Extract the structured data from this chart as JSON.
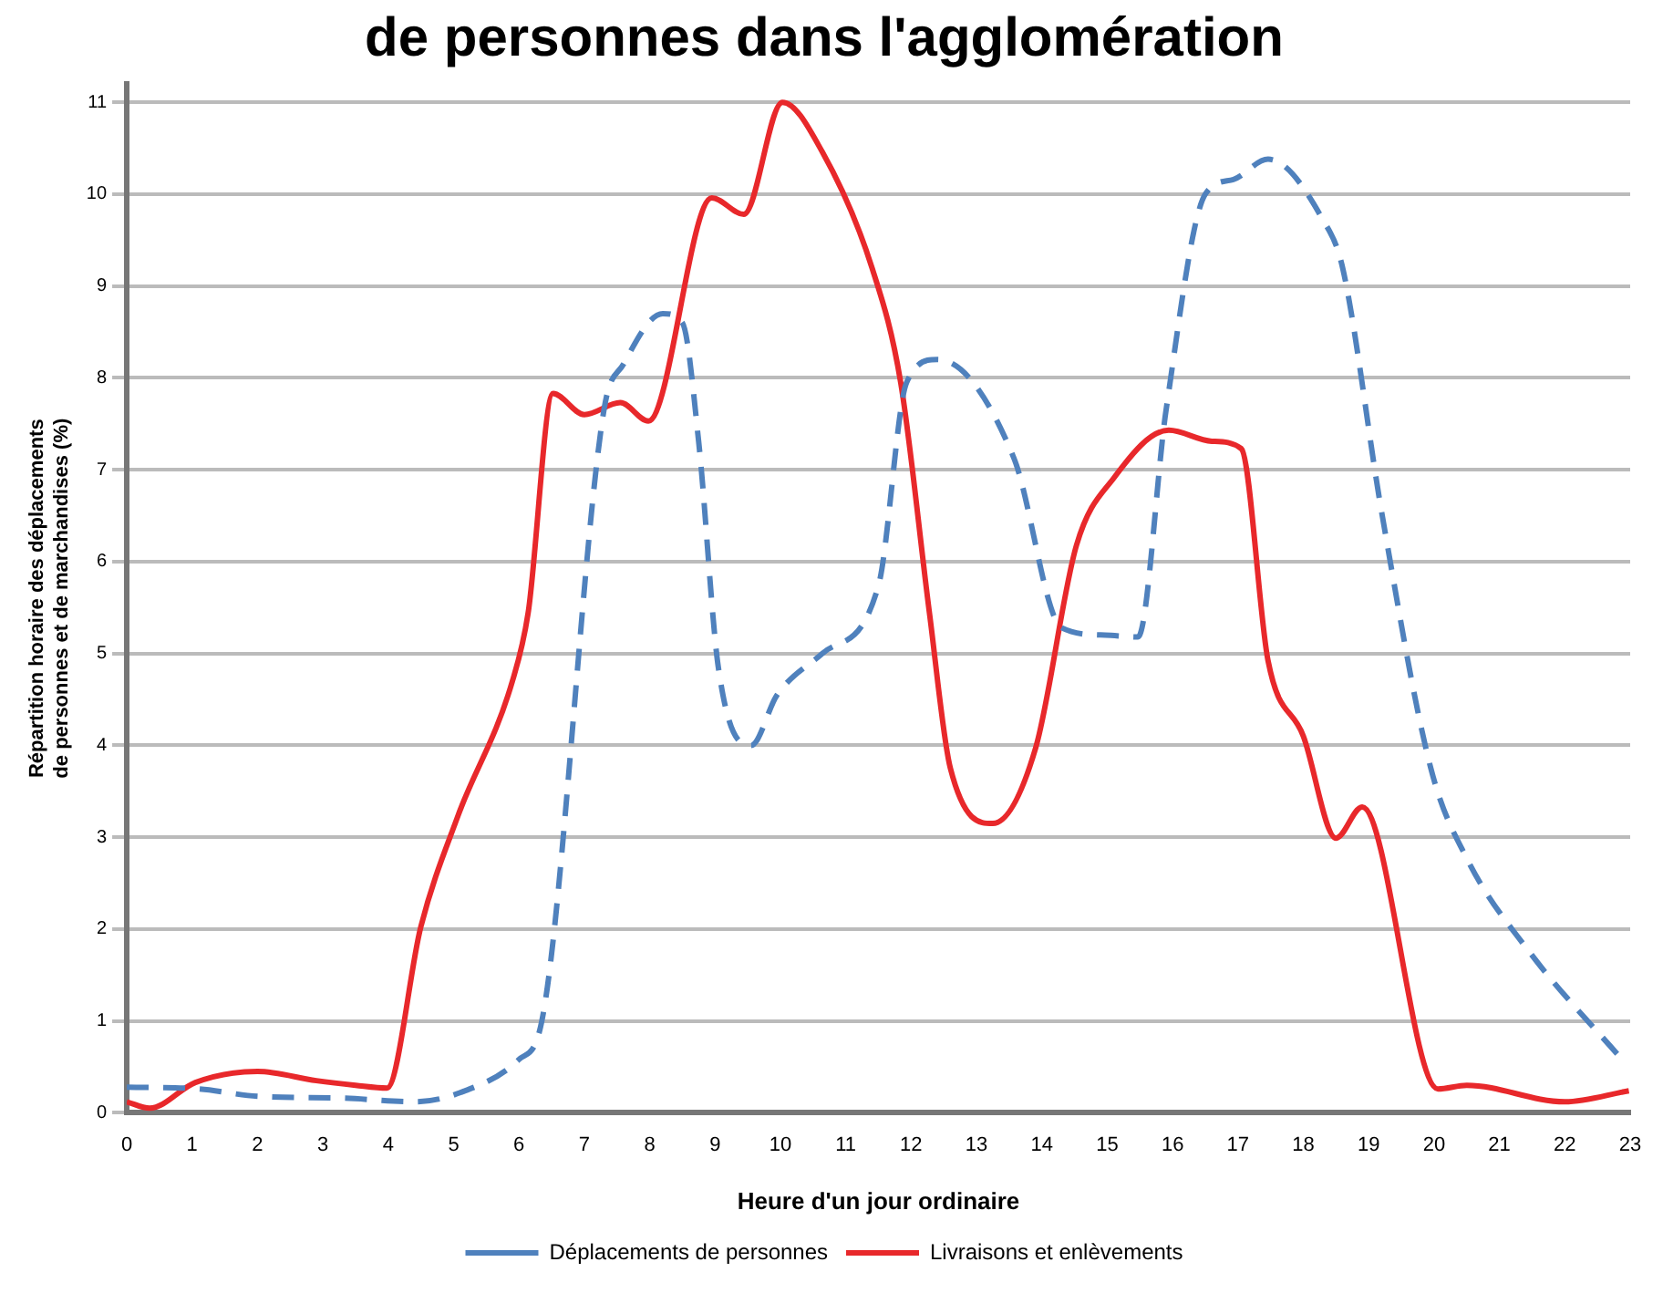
{
  "chart_data": {
    "type": "line",
    "title": "de personnes dans l'agglomération",
    "xlabel": "Heure d'un jour ordinaire",
    "ylabel": "Répartition horaire des déplacements\nde personnes et de marchandises (%)",
    "xlim": [
      0,
      23
    ],
    "xticks": [
      0,
      1,
      2,
      3,
      4,
      5,
      6,
      7,
      8,
      9,
      10,
      11,
      12,
      13,
      14,
      15,
      16,
      17,
      18,
      19,
      20,
      21,
      22,
      23
    ],
    "ylim": [
      0,
      11.2
    ],
    "yticks": [
      0,
      1,
      2,
      3,
      4,
      5,
      6,
      7,
      8,
      9,
      10,
      11
    ],
    "grid": "y",
    "legend": "bottom",
    "marker": "none",
    "series": [
      {
        "name": "Déplacements de personnes",
        "color": "#4f81bd",
        "line_style": "dashed",
        "x": [
          0,
          1.1,
          2,
          3.3,
          4.4,
          5.1,
          6,
          6.35,
          7.3,
          7.6,
          8.2,
          8.5,
          8.75,
          9.05,
          9.55,
          9.95,
          10.64,
          11.5,
          11.93,
          12.4,
          13.57,
          14.3,
          14.97,
          15.47,
          15.9,
          16.5,
          16.93,
          17.46,
          18.3,
          18.6,
          19.2,
          19.95,
          20.5,
          21.46,
          22.9
        ],
        "values": [
          0.28,
          0.26,
          0.18,
          0.16,
          0.12,
          0.22,
          0.58,
          1.0,
          7.65,
          8.15,
          8.7,
          8.6,
          7.3,
          4.85,
          4.0,
          4.55,
          5.0,
          5.74,
          7.95,
          8.2,
          7.13,
          5.28,
          5.2,
          5.18,
          7.65,
          10.0,
          10.16,
          10.38,
          9.72,
          9.2,
          6.53,
          3.75,
          2.77,
          1.75,
          0.56
        ]
      },
      {
        "name": "Livraisons et enlèvements",
        "color": "#e8282b",
        "line_style": "solid",
        "x": [
          0,
          0.35,
          1.05,
          2,
          2.9,
          3.5,
          3.98,
          4.5,
          5.06,
          5.9,
          6.14,
          6.52,
          7,
          7.55,
          7.98,
          8.95,
          9.44,
          10.03,
          10.64,
          11.4,
          11.84,
          12.28,
          12.6,
          13.25,
          13.9,
          14.53,
          15.1,
          15.94,
          16.6,
          17.05,
          17.46,
          18,
          18.5,
          18.9,
          20.06,
          20.5,
          22,
          22.98
        ],
        "values": [
          0.12,
          0.05,
          0.33,
          0.45,
          0.35,
          0.3,
          0.27,
          2.03,
          3.22,
          4.7,
          5.44,
          7.83,
          7.6,
          7.73,
          7.53,
          9.96,
          9.78,
          11.0,
          10.46,
          9.2,
          7.95,
          5.44,
          3.75,
          3.15,
          3.96,
          6.18,
          6.91,
          7.43,
          7.31,
          7.23,
          4.92,
          4.1,
          2.99,
          3.33,
          0.26,
          0.3,
          0.12,
          0.24
        ]
      }
    ]
  }
}
